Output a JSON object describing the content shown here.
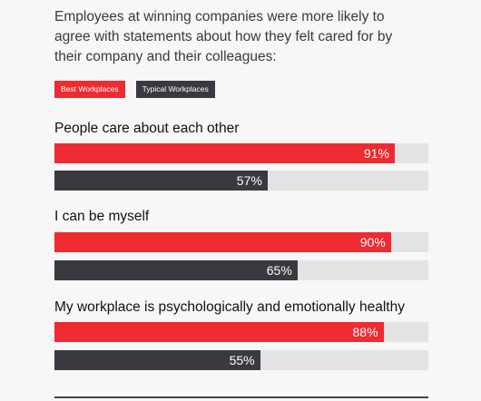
{
  "intro": {
    "line1": "Employees at winning companies were more likely to",
    "line2": "agree with statements about how they felt cared for by",
    "line3": "their company and their colleagues:"
  },
  "legend": {
    "best": "Best Workplaces",
    "typical": "Typical Workplaces"
  },
  "colors": {
    "best": "#ee2b30",
    "typical": "#383a3f",
    "track": "#e2e3e4"
  },
  "chart_data": {
    "type": "bar",
    "orientation": "horizontal",
    "categories": [
      "People care about each other",
      "I can be myself",
      "My workplace is psychologically and emotionally healthy"
    ],
    "series": [
      {
        "name": "Best Workplaces",
        "values": [
          91,
          90,
          88
        ],
        "labels": [
          "91%",
          "90%",
          "88%"
        ]
      },
      {
        "name": "Typical Workplaces",
        "values": [
          57,
          65,
          55
        ],
        "labels": [
          "57%",
          "65%",
          "55%"
        ]
      }
    ],
    "xlim": [
      0,
      100
    ],
    "grid": false,
    "legend_position": "top-left"
  }
}
